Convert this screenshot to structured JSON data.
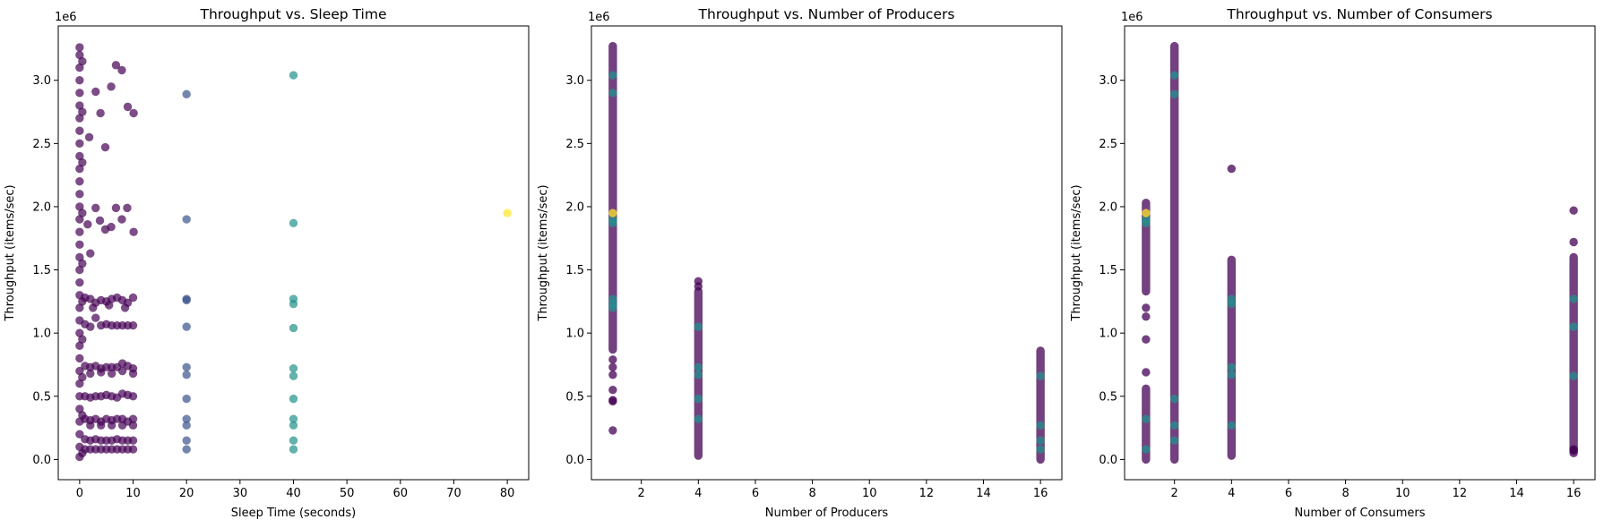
{
  "colors": {
    "dark": "#440154",
    "blue": "#3b528b",
    "teal": "#21918c",
    "yellow": "#fde725"
  },
  "chart_data": [
    {
      "type": "scatter",
      "title": "Throughput vs. Sleep Time",
      "xlabel": "Sleep Time (seconds)",
      "ylabel": "Throughput (items/sec)",
      "y_multiplier": "1e6",
      "xlim": [
        -4,
        84
      ],
      "ylim": [
        -0.16,
        3.43
      ],
      "xticks": [
        0,
        10,
        20,
        30,
        40,
        50,
        60,
        70,
        80
      ],
      "yticks": [
        0.0,
        0.5,
        1.0,
        1.5,
        2.0,
        2.5,
        3.0
      ],
      "grid": false,
      "series": [
        {
          "color": "dark",
          "opacity": 0.7,
          "points": [
            [
              0,
              3.26
            ],
            [
              0,
              3.2
            ],
            [
              0,
              3.1
            ],
            [
              0,
              3.0
            ],
            [
              0,
              2.9
            ],
            [
              0,
              2.8
            ],
            [
              0,
              2.7
            ],
            [
              0,
              2.6
            ],
            [
              0,
              2.5
            ],
            [
              0,
              2.4
            ],
            [
              0,
              2.3
            ],
            [
              0,
              2.2
            ],
            [
              0,
              2.1
            ],
            [
              0,
              2.0
            ],
            [
              0,
              1.9
            ],
            [
              0,
              1.8
            ],
            [
              0,
              1.7
            ],
            [
              0,
              1.6
            ],
            [
              0,
              1.5
            ],
            [
              0,
              1.4
            ],
            [
              0,
              1.3
            ],
            [
              0,
              1.2
            ],
            [
              0,
              1.1
            ],
            [
              0,
              1.0
            ],
            [
              0,
              0.9
            ],
            [
              0,
              0.8
            ],
            [
              0,
              0.7
            ],
            [
              0,
              0.6
            ],
            [
              0,
              0.5
            ],
            [
              0,
              0.4
            ],
            [
              0,
              0.3
            ],
            [
              0,
              0.2
            ],
            [
              0,
              0.1
            ],
            [
              0,
              0.02
            ],
            [
              0.5,
              3.15
            ],
            [
              0.5,
              2.75
            ],
            [
              0.5,
              2.35
            ],
            [
              0.5,
              1.95
            ],
            [
              0.5,
              1.55
            ],
            [
              0.5,
              1.25
            ],
            [
              0.5,
              0.95
            ],
            [
              0.5,
              0.65
            ],
            [
              0.5,
              0.35
            ],
            [
              0.5,
              0.05
            ],
            [
              6.8,
              3.12
            ],
            [
              7.9,
              3.08
            ],
            [
              5.9,
              2.95
            ],
            [
              3.0,
              2.91
            ],
            [
              9.0,
              2.79
            ],
            [
              3.9,
              2.74
            ],
            [
              10.1,
              2.74
            ],
            [
              1.8,
              2.55
            ],
            [
              4.8,
              2.47
            ],
            [
              6.8,
              1.99
            ],
            [
              3.0,
              1.99
            ],
            [
              8.9,
              1.99
            ],
            [
              7.9,
              1.9
            ],
            [
              3.8,
              1.89
            ],
            [
              5.9,
              1.84
            ],
            [
              4.8,
              1.82
            ],
            [
              10.1,
              1.8
            ],
            [
              1.5,
              1.86
            ],
            [
              2.0,
              1.63
            ],
            [
              1,
              1.28
            ],
            [
              2,
              1.27
            ],
            [
              3,
              1.24
            ],
            [
              4,
              1.26
            ],
            [
              5,
              1.25
            ],
            [
              6,
              1.27
            ],
            [
              7,
              1.28
            ],
            [
              8,
              1.26
            ],
            [
              9,
              1.24
            ],
            [
              10,
              1.28
            ],
            [
              2.5,
              1.2
            ],
            [
              5.5,
              1.22
            ],
            [
              8.5,
              1.2
            ],
            [
              1,
              1.07
            ],
            [
              2,
              1.05
            ],
            [
              3,
              1.12
            ],
            [
              4,
              1.06
            ],
            [
              5,
              1.07
            ],
            [
              6,
              1.06
            ],
            [
              7,
              1.06
            ],
            [
              8,
              1.06
            ],
            [
              9,
              1.06
            ],
            [
              10,
              1.06
            ],
            [
              1,
              0.74
            ],
            [
              2,
              0.73
            ],
            [
              3,
              0.74
            ],
            [
              4,
              0.72
            ],
            [
              5,
              0.73
            ],
            [
              6,
              0.73
            ],
            [
              7,
              0.73
            ],
            [
              8,
              0.76
            ],
            [
              9,
              0.74
            ],
            [
              10,
              0.72
            ],
            [
              2,
              0.68
            ],
            [
              4,
              0.69
            ],
            [
              6,
              0.68
            ],
            [
              8,
              0.7
            ],
            [
              10,
              0.68
            ],
            [
              1,
              0.5
            ],
            [
              2,
              0.49
            ],
            [
              3,
              0.5
            ],
            [
              4,
              0.5
            ],
            [
              5,
              0.51
            ],
            [
              6,
              0.5
            ],
            [
              7,
              0.49
            ],
            [
              8,
              0.52
            ],
            [
              9,
              0.51
            ],
            [
              10,
              0.5
            ],
            [
              1,
              0.32
            ],
            [
              2,
              0.31
            ],
            [
              3,
              0.32
            ],
            [
              4,
              0.3
            ],
            [
              5,
              0.32
            ],
            [
              6,
              0.31
            ],
            [
              7,
              0.32
            ],
            [
              8,
              0.32
            ],
            [
              9,
              0.3
            ],
            [
              10,
              0.32
            ],
            [
              2,
              0.27
            ],
            [
              4,
              0.27
            ],
            [
              6,
              0.27
            ],
            [
              8,
              0.27
            ],
            [
              10,
              0.27
            ],
            [
              1,
              0.16
            ],
            [
              2,
              0.15
            ],
            [
              3,
              0.16
            ],
            [
              4,
              0.15
            ],
            [
              5,
              0.15
            ],
            [
              6,
              0.15
            ],
            [
              7,
              0.16
            ],
            [
              8,
              0.15
            ],
            [
              9,
              0.15
            ],
            [
              10,
              0.15
            ],
            [
              1,
              0.08
            ],
            [
              2,
              0.08
            ],
            [
              3,
              0.08
            ],
            [
              4,
              0.08
            ],
            [
              5,
              0.08
            ],
            [
              6,
              0.08
            ],
            [
              7,
              0.08
            ],
            [
              8,
              0.08
            ],
            [
              9,
              0.08
            ],
            [
              10,
              0.08
            ]
          ]
        },
        {
          "color": "blue",
          "opacity": 0.7,
          "points": [
            [
              20,
              2.89
            ],
            [
              20,
              1.9
            ],
            [
              20,
              1.27
            ],
            [
              20,
              1.26
            ],
            [
              20,
              1.05
            ],
            [
              20,
              0.73
            ],
            [
              20,
              0.67
            ],
            [
              20,
              0.48
            ],
            [
              20,
              0.32
            ],
            [
              20,
              0.27
            ],
            [
              20,
              0.15
            ],
            [
              20,
              0.08
            ]
          ]
        },
        {
          "color": "teal",
          "opacity": 0.7,
          "points": [
            [
              40,
              3.04
            ],
            [
              40,
              1.87
            ],
            [
              40,
              1.27
            ],
            [
              40,
              1.23
            ],
            [
              40,
              1.04
            ],
            [
              40,
              0.72
            ],
            [
              40,
              0.66
            ],
            [
              40,
              0.48
            ],
            [
              40,
              0.32
            ],
            [
              40,
              0.27
            ],
            [
              40,
              0.15
            ],
            [
              40,
              0.08
            ]
          ]
        },
        {
          "color": "yellow",
          "opacity": 0.7,
          "points": [
            [
              80,
              1.95
            ]
          ]
        }
      ]
    },
    {
      "type": "scatter",
      "title": "Throughput vs. Number of Producers",
      "xlabel": "Number of Producers",
      "ylabel": "Throughput (items/sec)",
      "y_multiplier": "1e6",
      "xlim": [
        0.25,
        16.75
      ],
      "ylim": [
        -0.16,
        3.43
      ],
      "xticks": [
        2,
        4,
        6,
        8,
        10,
        12,
        14,
        16
      ],
      "yticks": [
        0.0,
        0.5,
        1.0,
        1.5,
        2.0,
        2.5,
        3.0
      ],
      "grid": false,
      "series": [
        {
          "color": "dark",
          "opacity": 0.75,
          "columns": [
            {
              "x": 1,
              "from": 0.87,
              "to": 3.27
            },
            {
              "x": 4,
              "from": 0.03,
              "to": 1.33
            },
            {
              "x": 16,
              "from": 0.0,
              "to": 0.86
            }
          ],
          "points": [
            [
              1,
              0.79
            ],
            [
              1,
              0.73
            ],
            [
              1,
              0.67
            ],
            [
              1,
              0.55
            ],
            [
              1,
              0.47
            ],
            [
              1,
              0.46
            ],
            [
              1,
              0.23
            ],
            [
              4,
              1.41
            ],
            [
              4,
              1.37
            ]
          ]
        },
        {
          "color": "teal",
          "opacity": 0.75,
          "points": [
            [
              1,
              3.04
            ],
            [
              1,
              2.9
            ],
            [
              1,
              1.9
            ],
            [
              1,
              1.87
            ],
            [
              1,
              1.27
            ],
            [
              1,
              1.23
            ],
            [
              1,
              1.2
            ],
            [
              4,
              1.05
            ],
            [
              4,
              0.73
            ],
            [
              4,
              0.67
            ],
            [
              4,
              0.48
            ],
            [
              4,
              0.32
            ],
            [
              16,
              0.66
            ],
            [
              16,
              0.27
            ],
            [
              16,
              0.15
            ],
            [
              16,
              0.08
            ]
          ]
        },
        {
          "color": "yellow",
          "opacity": 0.75,
          "points": [
            [
              1,
              1.95
            ]
          ]
        }
      ]
    },
    {
      "type": "scatter",
      "title": "Throughput vs. Number of Consumers",
      "xlabel": "Number of Consumers",
      "ylabel": "Throughput (items/sec)",
      "y_multiplier": "1e6",
      "xlim": [
        0.25,
        16.75
      ],
      "ylim": [
        -0.16,
        3.43
      ],
      "xticks": [
        2,
        4,
        6,
        8,
        10,
        12,
        14,
        16
      ],
      "yticks": [
        0.0,
        0.5,
        1.0,
        1.5,
        2.0,
        2.5,
        3.0
      ],
      "grid": false,
      "series": [
        {
          "color": "dark",
          "opacity": 0.75,
          "columns": [
            {
              "x": 1,
              "from": 1.33,
              "to": 2.03
            },
            {
              "x": 1,
              "from": 0.0,
              "to": 0.56
            },
            {
              "x": 2,
              "from": 0.0,
              "to": 3.27
            },
            {
              "x": 4,
              "from": 0.03,
              "to": 1.58
            },
            {
              "x": 16,
              "from": 0.05,
              "to": 1.6
            }
          ],
          "points": [
            [
              1,
              1.2
            ],
            [
              1,
              1.13
            ],
            [
              1,
              0.95
            ],
            [
              1,
              0.69
            ],
            [
              4,
              2.3
            ],
            [
              16,
              1.97
            ],
            [
              16,
              1.72
            ],
            [
              16,
              0.07
            ],
            [
              16,
              0.08
            ]
          ]
        },
        {
          "color": "teal",
          "opacity": 0.75,
          "points": [
            [
              1,
              1.9
            ],
            [
              1,
              1.87
            ],
            [
              1,
              0.32
            ],
            [
              1,
              0.08
            ],
            [
              2,
              3.04
            ],
            [
              2,
              2.89
            ],
            [
              2,
              0.48
            ],
            [
              2,
              0.27
            ],
            [
              2,
              0.15
            ],
            [
              4,
              1.27
            ],
            [
              4,
              1.23
            ],
            [
              4,
              0.73
            ],
            [
              4,
              0.67
            ],
            [
              4,
              0.27
            ],
            [
              16,
              1.27
            ],
            [
              16,
              1.05
            ],
            [
              16,
              0.66
            ]
          ]
        },
        {
          "color": "yellow",
          "opacity": 0.75,
          "points": [
            [
              1,
              1.95
            ]
          ]
        }
      ]
    }
  ]
}
